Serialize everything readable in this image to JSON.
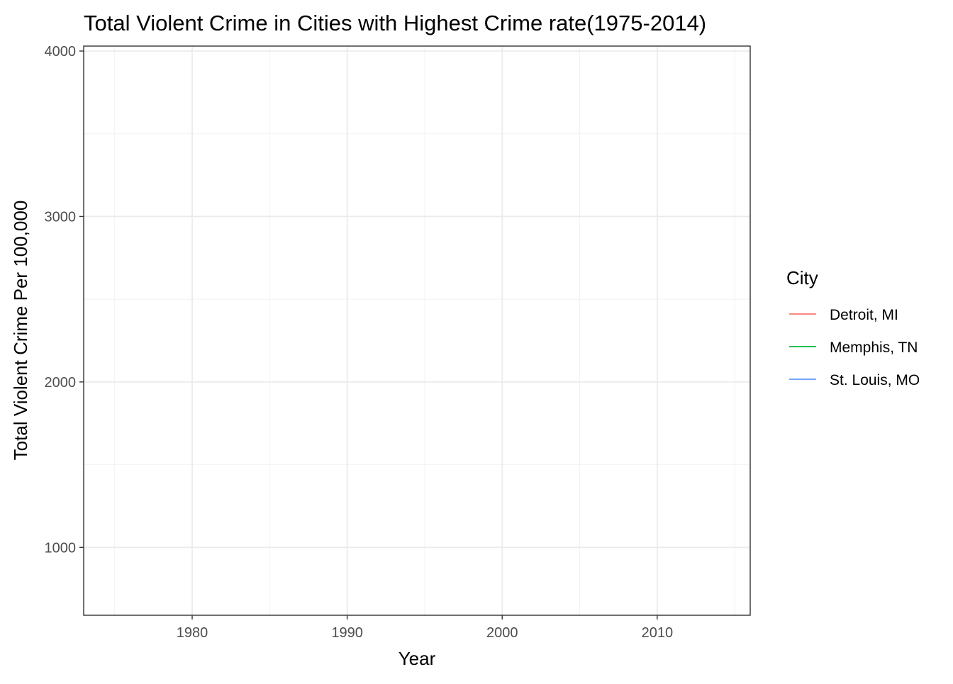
{
  "chart_data": {
    "type": "line",
    "title": "Total Violent Crime in Cities with Highest Crime rate(1975-2014)",
    "xlabel": "Year",
    "ylabel": "Total Violent Crime Per 100,000",
    "xlim": [
      1973,
      2016
    ],
    "ylim": [
      590,
      4030
    ],
    "x_ticks": [
      1980,
      1990,
      2000,
      2010
    ],
    "x_ticks_minor": [
      1975,
      1985,
      1995,
      2005,
      2015
    ],
    "y_ticks": [
      1000,
      2000,
      3000,
      4000
    ],
    "y_ticks_minor": [
      1500,
      2500,
      3500
    ],
    "grid": true,
    "legend": {
      "title": "City",
      "position": "right"
    },
    "series": [
      {
        "name": "Detroit, MI",
        "color": "#F8766D",
        "x": [],
        "values": []
      },
      {
        "name": "Memphis, TN",
        "color": "#00BA38",
        "x": [],
        "values": []
      },
      {
        "name": "St. Louis, MO",
        "color": "#619CFF",
        "x": [],
        "values": []
      }
    ]
  }
}
